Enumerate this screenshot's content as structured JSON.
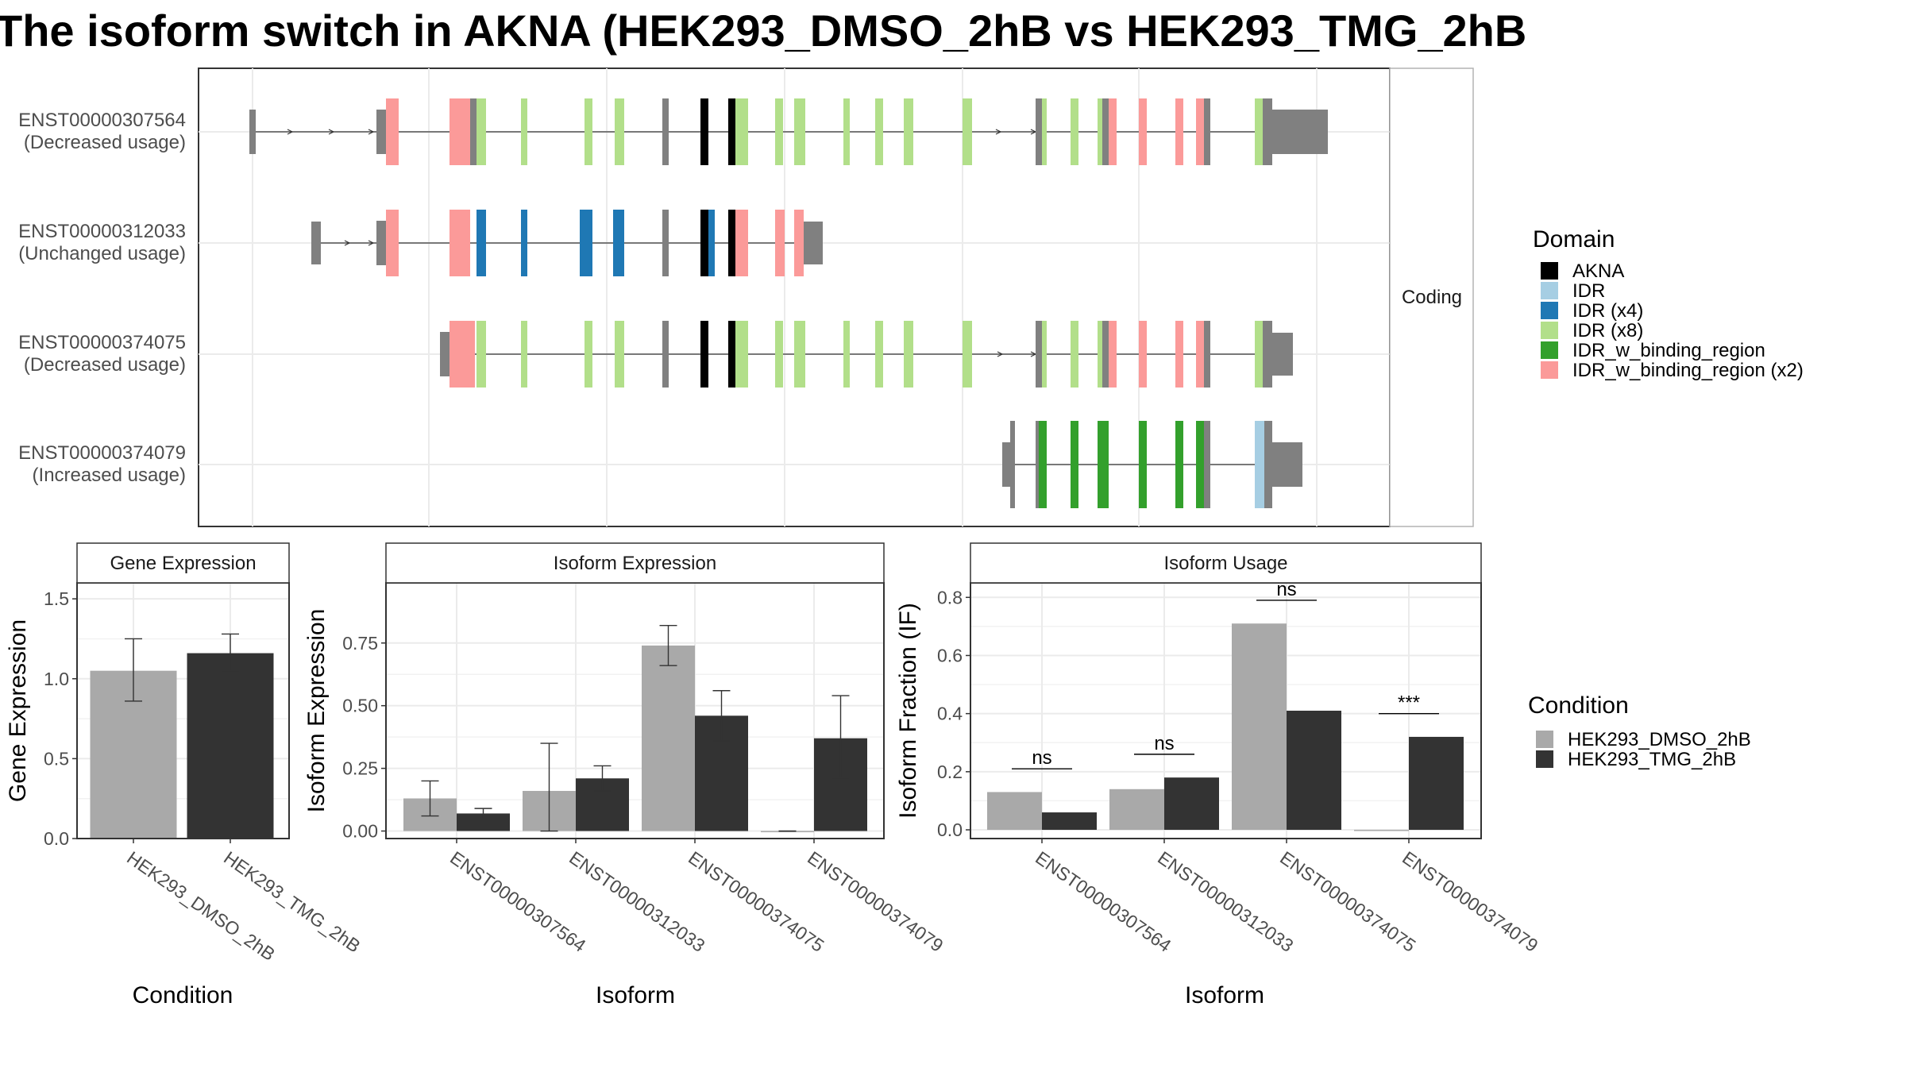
{
  "title": "The isoform switch in AKNA (HEK293_DMSO_2hB vs HEK293_TMG_2hB",
  "colors": {
    "AKNA": "#000000",
    "IDR": "#a6cee3",
    "IDR (x4)": "#1f78b4",
    "IDR (x8)": "#b2df8a",
    "IDR_w_binding_region": "#33a02c",
    "IDR_w_binding_region (x2)": "#fb9a99",
    "exon": "#808080",
    "dmso": "#a9a9a9",
    "tmg": "#333333"
  },
  "structure": {
    "strip_label": "Coding",
    "isoforms": [
      {
        "id": "ENST00000307564",
        "usage": "(Decreased usage)"
      },
      {
        "id": "ENST00000312033",
        "usage": "(Unchanged usage)"
      },
      {
        "id": "ENST00000374075",
        "usage": "(Decreased usage)"
      },
      {
        "id": "ENST00000374079",
        "usage": "(Increased usage)"
      }
    ]
  },
  "legends": {
    "domain": {
      "title": "Domain",
      "items": [
        "AKNA",
        "IDR",
        "IDR (x4)",
        "IDR (x8)",
        "IDR_w_binding_region",
        "IDR_w_binding_region (x2)"
      ]
    },
    "condition": {
      "title": "Condition",
      "items": [
        "HEK293_DMSO_2hB",
        "HEK293_TMG_2hB"
      ]
    }
  },
  "chart_data": [
    {
      "type": "bar",
      "panel": "Gene Expression",
      "categories": [
        "HEK293_DMSO_2hB",
        "HEK293_TMG_2hB"
      ],
      "values": [
        1.05,
        1.16
      ],
      "error_low": [
        0.86,
        1.05
      ],
      "error_high": [
        1.25,
        1.28
      ],
      "xlabel": "Condition",
      "ylabel": "Gene Expression",
      "ylim": [
        0,
        1.6
      ],
      "yticks": [
        0.0,
        0.5,
        1.0,
        1.5
      ],
      "ytick_labels": [
        "0.0",
        "0.5",
        "1.0",
        "1.5"
      ],
      "grid": true
    },
    {
      "type": "bar",
      "panel": "Isoform Expression",
      "categories": [
        "ENST00000307564",
        "ENST00000312033",
        "ENST00000374075",
        "ENST00000374079"
      ],
      "series": [
        {
          "name": "HEK293_DMSO_2hB",
          "values": [
            0.13,
            0.16,
            0.74,
            0.0
          ],
          "error_low": [
            0.06,
            0.0,
            0.66,
            0.0
          ],
          "error_high": [
            0.2,
            0.35,
            0.82,
            0.0
          ]
        },
        {
          "name": "HEK293_TMG_2hB",
          "values": [
            0.07,
            0.21,
            0.46,
            0.37
          ],
          "error_low": [
            0.05,
            0.16,
            0.36,
            0.21
          ],
          "error_high": [
            0.09,
            0.26,
            0.56,
            0.54
          ]
        }
      ],
      "xlabel": "Isoform",
      "ylabel": "Isoform Expression",
      "ylim": [
        -0.03,
        0.99
      ],
      "yticks": [
        0.0,
        0.25,
        0.5,
        0.75
      ],
      "ytick_labels": [
        "0.00",
        "0.25",
        "0.50",
        "0.75"
      ],
      "grid": true
    },
    {
      "type": "bar",
      "panel": "Isoform Usage",
      "categories": [
        "ENST00000307564",
        "ENST00000312033",
        "ENST00000374075",
        "ENST00000374079"
      ],
      "series": [
        {
          "name": "HEK293_DMSO_2hB",
          "values": [
            0.13,
            0.14,
            0.71,
            0.0
          ]
        },
        {
          "name": "HEK293_TMG_2hB",
          "values": [
            0.06,
            0.18,
            0.41,
            0.32
          ]
        }
      ],
      "significance": [
        "ns",
        "ns",
        "ns",
        "***"
      ],
      "xlabel": "Isoform",
      "ylabel": "Isoform Fraction (IF)",
      "ylim": [
        -0.03,
        0.85
      ],
      "yticks": [
        0.0,
        0.2,
        0.4,
        0.6,
        0.8
      ],
      "ytick_labels": [
        "0.0",
        "0.2",
        "0.4",
        "0.6",
        "0.8"
      ],
      "grid": true
    }
  ]
}
